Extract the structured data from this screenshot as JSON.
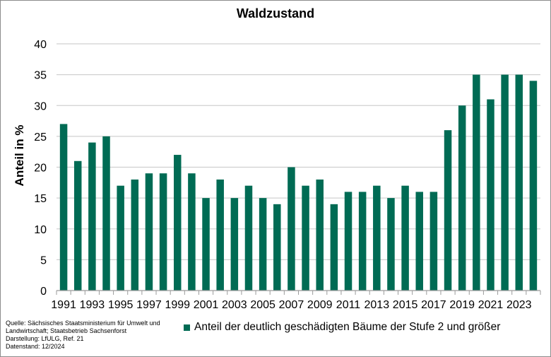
{
  "chart_data": {
    "type": "bar",
    "title": "Waldzustand",
    "xlabel": "",
    "ylabel": "Anteil in %",
    "ylim": [
      0,
      40
    ],
    "yticks": [
      0,
      5,
      10,
      15,
      20,
      25,
      30,
      35,
      40
    ],
    "grid": true,
    "legend_position": "bottom",
    "color": "#006B54",
    "categories": [
      "1991",
      "1992",
      "1993",
      "1994",
      "1995",
      "1996",
      "1997",
      "1998",
      "1999",
      "2000",
      "2001",
      "2002",
      "2003",
      "2004",
      "2005",
      "2006",
      "2007",
      "2008",
      "2009",
      "2010",
      "2011",
      "2012",
      "2013",
      "2014",
      "2015",
      "2016",
      "2017",
      "2018",
      "2019",
      "2020",
      "2021",
      "2022",
      "2023",
      "2024"
    ],
    "xtick_labels": [
      "1991",
      "1993",
      "1995",
      "1997",
      "1999",
      "2001",
      "2003",
      "2005",
      "2007",
      "2009",
      "2011",
      "2013",
      "2015",
      "2017",
      "2019",
      "2021",
      "2023"
    ],
    "series": [
      {
        "name": "Anteil der deutlich geschädigten Bäume der Stufe 2 und größer",
        "values": [
          27,
          21,
          24,
          25,
          17,
          18,
          19,
          19,
          22,
          19,
          15,
          18,
          15,
          17,
          15,
          14,
          20,
          17,
          18,
          14,
          16,
          16,
          17,
          15,
          17,
          16,
          16,
          26,
          30,
          35,
          31,
          35,
          35,
          34
        ]
      }
    ]
  },
  "source": {
    "line1": "Quelle:  Sächsisches Staatsministerium für Umwelt und",
    "line2": "Landwirtschaft; Staatsbetrieb Sachsenforst",
    "line3": "Darstellung: LfULG, Ref. 21",
    "line4": "Datenstand: 12/2024"
  }
}
